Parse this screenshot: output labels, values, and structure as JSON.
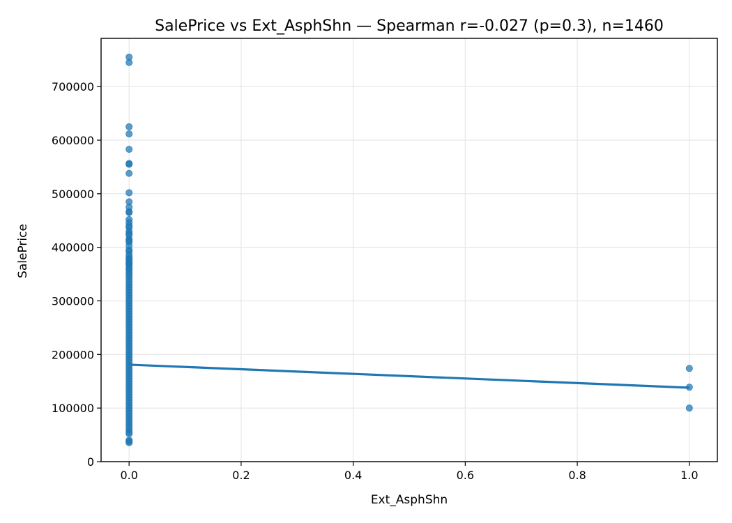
{
  "chart_data": {
    "type": "scatter",
    "title": "SalePrice vs Ext_AsphShn — Spearman r=-0.027 (p=0.3), n=1460",
    "xlabel": "Ext_AsphShn",
    "ylabel": "SalePrice",
    "xlim": [
      -0.05,
      1.05
    ],
    "ylim": [
      0,
      790000
    ],
    "x_ticks": [
      0.0,
      0.2,
      0.4,
      0.6,
      0.8,
      1.0
    ],
    "x_tick_labels": [
      "0.0",
      "0.2",
      "0.4",
      "0.6",
      "0.8",
      "1.0"
    ],
    "y_ticks": [
      0,
      100000,
      200000,
      300000,
      400000,
      500000,
      600000,
      700000
    ],
    "y_tick_labels": [
      "0",
      "100000",
      "200000",
      "300000",
      "400000",
      "500000",
      "600000",
      "700000"
    ],
    "grid": true,
    "point_color": "#1f77b4",
    "line_color": "#1f77b4",
    "series": [
      {
        "type": "scatter",
        "points": [
          [
            0,
            755000
          ],
          [
            0,
            745000
          ],
          [
            0,
            625000
          ],
          [
            0,
            611657
          ],
          [
            0,
            582933
          ],
          [
            0,
            556581
          ],
          [
            0,
            555000
          ],
          [
            0,
            538000
          ],
          [
            0,
            501837
          ],
          [
            0,
            485000
          ],
          [
            0,
            475000
          ],
          [
            0,
            466500
          ],
          [
            0,
            465000
          ],
          [
            0,
            451950
          ],
          [
            0,
            446261
          ],
          [
            0,
            440000
          ],
          [
            0,
            437154
          ],
          [
            0,
            430000
          ],
          [
            0,
            426000
          ],
          [
            0,
            423000
          ],
          [
            0,
            415298
          ],
          [
            0,
            412500
          ],
          [
            0,
            410000
          ],
          [
            0,
            402861
          ],
          [
            0,
            395192
          ],
          [
            0,
            392500
          ],
          [
            0,
            386250
          ],
          [
            0,
            381000
          ],
          [
            0,
            378500
          ],
          [
            0,
            375000
          ],
          [
            0,
            370878
          ],
          [
            0,
            369900
          ],
          [
            0,
            367294
          ],
          [
            0,
            361919
          ],
          [
            0,
            359100
          ],
          [
            0,
            354000
          ],
          [
            0,
            350000
          ],
          [
            0,
            345000
          ],
          [
            0,
            340000
          ],
          [
            0,
            335000
          ],
          [
            0,
            330000
          ],
          [
            0,
            325000
          ],
          [
            0,
            320000
          ],
          [
            0,
            315000
          ],
          [
            0,
            310000
          ],
          [
            0,
            305000
          ],
          [
            0,
            300000
          ],
          [
            0,
            295000
          ],
          [
            0,
            290000
          ],
          [
            0,
            285000
          ],
          [
            0,
            280000
          ],
          [
            0,
            275000
          ],
          [
            0,
            270000
          ],
          [
            0,
            265000
          ],
          [
            0,
            260000
          ],
          [
            0,
            255000
          ],
          [
            0,
            250000
          ],
          [
            0,
            245000
          ],
          [
            0,
            240000
          ],
          [
            0,
            235000
          ],
          [
            0,
            230000
          ],
          [
            0,
            225000
          ],
          [
            0,
            220000
          ],
          [
            0,
            215000
          ],
          [
            0,
            210000
          ],
          [
            0,
            205000
          ],
          [
            0,
            200000
          ],
          [
            0,
            195000
          ],
          [
            0,
            190000
          ],
          [
            0,
            185000
          ],
          [
            0,
            180000
          ],
          [
            0,
            175000
          ],
          [
            0,
            170000
          ],
          [
            0,
            165000
          ],
          [
            0,
            160000
          ],
          [
            0,
            155000
          ],
          [
            0,
            150000
          ],
          [
            0,
            145000
          ],
          [
            0,
            140000
          ],
          [
            0,
            135000
          ],
          [
            0,
            130000
          ],
          [
            0,
            125000
          ],
          [
            0,
            120000
          ],
          [
            0,
            115000
          ],
          [
            0,
            110000
          ],
          [
            0,
            105000
          ],
          [
            0,
            100000
          ],
          [
            0,
            95000
          ],
          [
            0,
            90000
          ],
          [
            0,
            85000
          ],
          [
            0,
            80000
          ],
          [
            0,
            75000
          ],
          [
            0,
            70000
          ],
          [
            0,
            65000
          ],
          [
            0,
            60000
          ],
          [
            0,
            55000
          ],
          [
            0,
            52000
          ],
          [
            0,
            40000
          ],
          [
            0,
            37900
          ],
          [
            0,
            35311
          ],
          [
            1,
            174000
          ],
          [
            1,
            138887
          ],
          [
            1,
            100000
          ]
        ]
      },
      {
        "type": "line",
        "points": [
          [
            0,
            181000
          ],
          [
            1,
            138000
          ]
        ]
      }
    ]
  }
}
